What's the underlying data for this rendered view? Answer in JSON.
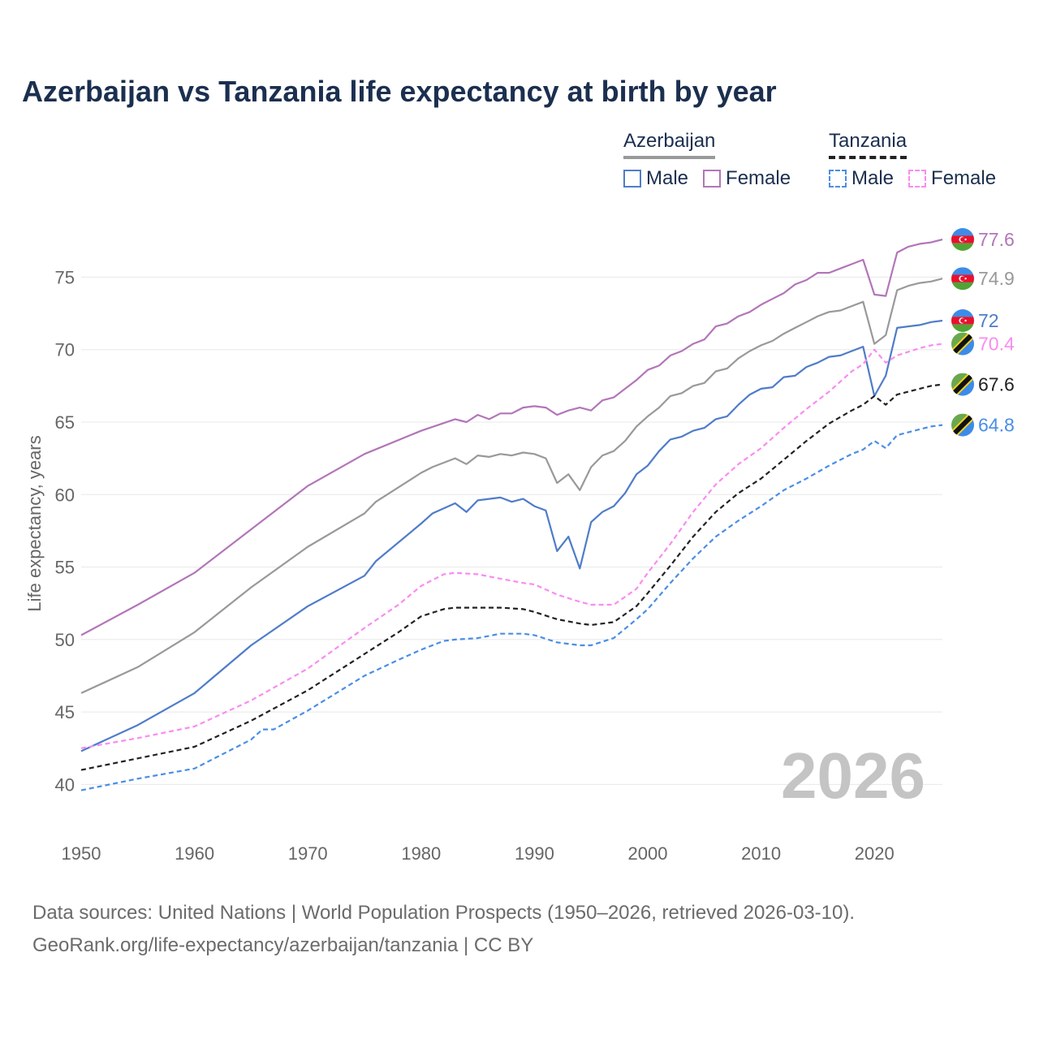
{
  "chart_data": {
    "type": "line",
    "title": "Azerbaijan vs Tanzania life expectancy at birth by year",
    "ylabel": "Life expectancy, years",
    "xlabel": "",
    "xlim": [
      1950,
      2026
    ],
    "ylim": [
      37,
      79
    ],
    "x_ticks": [
      1950,
      1960,
      1970,
      1980,
      1990,
      2000,
      2010,
      2020
    ],
    "y_ticks": [
      40,
      45,
      50,
      55,
      60,
      65,
      70,
      75
    ],
    "year_watermark": "2026",
    "legend": {
      "azerbaijan_label": "Azerbaijan",
      "tanzania_label": "Tanzania",
      "male_label": "Male",
      "female_label": "Female"
    },
    "series": [
      {
        "key": "az_female",
        "name": "Azerbaijan Female",
        "color": "#b276b8",
        "dashed": false,
        "end_label": "77.6",
        "flag": "azerbaijan",
        "points": [
          [
            1950,
            50.3
          ],
          [
            1955,
            52.4
          ],
          [
            1960,
            54.6
          ],
          [
            1965,
            57.6
          ],
          [
            1970,
            60.6
          ],
          [
            1975,
            62.8
          ],
          [
            1980,
            64.4
          ],
          [
            1983,
            65.2
          ],
          [
            1984,
            65.0
          ],
          [
            1985,
            65.5
          ],
          [
            1986,
            65.2
          ],
          [
            1987,
            65.6
          ],
          [
            1988,
            65.6
          ],
          [
            1989,
            66.0
          ],
          [
            1990,
            66.1
          ],
          [
            1991,
            66.0
          ],
          [
            1992,
            65.5
          ],
          [
            1993,
            65.8
          ],
          [
            1994,
            66.0
          ],
          [
            1995,
            65.8
          ],
          [
            1996,
            66.5
          ],
          [
            1997,
            66.7
          ],
          [
            1998,
            67.3
          ],
          [
            1999,
            67.9
          ],
          [
            2000,
            68.6
          ],
          [
            2001,
            68.9
          ],
          [
            2002,
            69.6
          ],
          [
            2003,
            69.9
          ],
          [
            2004,
            70.4
          ],
          [
            2005,
            70.7
          ],
          [
            2006,
            71.6
          ],
          [
            2007,
            71.8
          ],
          [
            2008,
            72.3
          ],
          [
            2009,
            72.6
          ],
          [
            2010,
            73.1
          ],
          [
            2011,
            73.5
          ],
          [
            2012,
            73.9
          ],
          [
            2013,
            74.5
          ],
          [
            2014,
            74.8
          ],
          [
            2015,
            75.3
          ],
          [
            2016,
            75.3
          ],
          [
            2017,
            75.6
          ],
          [
            2018,
            75.9
          ],
          [
            2019,
            76.2
          ],
          [
            2020,
            73.8
          ],
          [
            2021,
            73.7
          ],
          [
            2022,
            76.7
          ],
          [
            2023,
            77.1
          ],
          [
            2024,
            77.3
          ],
          [
            2025,
            77.4
          ],
          [
            2026,
            77.6
          ]
        ]
      },
      {
        "key": "az_total",
        "name": "Azerbaijan",
        "color": "#999999",
        "dashed": false,
        "end_label": "74.9",
        "flag": "azerbaijan",
        "points": [
          [
            1950,
            46.3
          ],
          [
            1955,
            48.1
          ],
          [
            1960,
            50.5
          ],
          [
            1965,
            53.6
          ],
          [
            1970,
            56.4
          ],
          [
            1975,
            58.7
          ],
          [
            1976,
            59.5
          ],
          [
            1980,
            61.5
          ],
          [
            1981,
            61.9
          ],
          [
            1983,
            62.5
          ],
          [
            1984,
            62.1
          ],
          [
            1985,
            62.7
          ],
          [
            1986,
            62.6
          ],
          [
            1987,
            62.8
          ],
          [
            1988,
            62.7
          ],
          [
            1989,
            62.9
          ],
          [
            1990,
            62.8
          ],
          [
            1991,
            62.5
          ],
          [
            1992,
            60.8
          ],
          [
            1993,
            61.4
          ],
          [
            1994,
            60.3
          ],
          [
            1995,
            61.9
          ],
          [
            1996,
            62.7
          ],
          [
            1997,
            63.0
          ],
          [
            1998,
            63.7
          ],
          [
            1999,
            64.7
          ],
          [
            2000,
            65.4
          ],
          [
            2001,
            66.0
          ],
          [
            2002,
            66.8
          ],
          [
            2003,
            67.0
          ],
          [
            2004,
            67.5
          ],
          [
            2005,
            67.7
          ],
          [
            2006,
            68.5
          ],
          [
            2007,
            68.7
          ],
          [
            2008,
            69.4
          ],
          [
            2009,
            69.9
          ],
          [
            2010,
            70.3
          ],
          [
            2011,
            70.6
          ],
          [
            2012,
            71.1
          ],
          [
            2013,
            71.5
          ],
          [
            2014,
            71.9
          ],
          [
            2015,
            72.3
          ],
          [
            2016,
            72.6
          ],
          [
            2017,
            72.7
          ],
          [
            2018,
            73.0
          ],
          [
            2019,
            73.3
          ],
          [
            2020,
            70.4
          ],
          [
            2021,
            71.0
          ],
          [
            2022,
            74.1
          ],
          [
            2023,
            74.4
          ],
          [
            2024,
            74.6
          ],
          [
            2025,
            74.7
          ],
          [
            2026,
            74.9
          ]
        ]
      },
      {
        "key": "az_male",
        "name": "Azerbaijan Male",
        "color": "#4f7cc9",
        "dashed": false,
        "end_label": "72",
        "flag": "azerbaijan",
        "points": [
          [
            1950,
            42.3
          ],
          [
            1955,
            44.1
          ],
          [
            1960,
            46.3
          ],
          [
            1965,
            49.6
          ],
          [
            1970,
            52.3
          ],
          [
            1975,
            54.4
          ],
          [
            1976,
            55.4
          ],
          [
            1980,
            58.0
          ],
          [
            1981,
            58.7
          ],
          [
            1983,
            59.4
          ],
          [
            1984,
            58.8
          ],
          [
            1985,
            59.6
          ],
          [
            1986,
            59.7
          ],
          [
            1987,
            59.8
          ],
          [
            1988,
            59.5
          ],
          [
            1989,
            59.7
          ],
          [
            1990,
            59.2
          ],
          [
            1991,
            58.9
          ],
          [
            1992,
            56.1
          ],
          [
            1993,
            57.1
          ],
          [
            1994,
            54.9
          ],
          [
            1995,
            58.1
          ],
          [
            1996,
            58.8
          ],
          [
            1997,
            59.2
          ],
          [
            1998,
            60.1
          ],
          [
            1999,
            61.4
          ],
          [
            2000,
            62.0
          ],
          [
            2001,
            63.0
          ],
          [
            2002,
            63.8
          ],
          [
            2003,
            64.0
          ],
          [
            2004,
            64.4
          ],
          [
            2005,
            64.6
          ],
          [
            2006,
            65.2
          ],
          [
            2007,
            65.4
          ],
          [
            2008,
            66.2
          ],
          [
            2009,
            66.9
          ],
          [
            2010,
            67.3
          ],
          [
            2011,
            67.4
          ],
          [
            2012,
            68.1
          ],
          [
            2013,
            68.2
          ],
          [
            2014,
            68.8
          ],
          [
            2015,
            69.1
          ],
          [
            2016,
            69.5
          ],
          [
            2017,
            69.6
          ],
          [
            2018,
            69.9
          ],
          [
            2019,
            70.2
          ],
          [
            2020,
            66.8
          ],
          [
            2021,
            68.2
          ],
          [
            2022,
            71.5
          ],
          [
            2023,
            71.6
          ],
          [
            2024,
            71.7
          ],
          [
            2025,
            71.9
          ],
          [
            2026,
            72.0
          ]
        ]
      },
      {
        "key": "tz_female",
        "name": "Tanzania Female",
        "color": "#f98cf0",
        "dashed": true,
        "end_label": "70.4",
        "flag": "tanzania",
        "points": [
          [
            1950,
            42.5
          ],
          [
            1955,
            43.2
          ],
          [
            1960,
            44.0
          ],
          [
            1965,
            45.8
          ],
          [
            1970,
            48.0
          ],
          [
            1975,
            50.8
          ],
          [
            1978,
            52.4
          ],
          [
            1980,
            53.7
          ],
          [
            1982,
            54.5
          ],
          [
            1983,
            54.6
          ],
          [
            1985,
            54.5
          ],
          [
            1987,
            54.2
          ],
          [
            1989,
            53.9
          ],
          [
            1990,
            53.8
          ],
          [
            1992,
            53.1
          ],
          [
            1994,
            52.6
          ],
          [
            1995,
            52.4
          ],
          [
            1997,
            52.4
          ],
          [
            1999,
            53.5
          ],
          [
            2000,
            54.6
          ],
          [
            2002,
            56.6
          ],
          [
            2004,
            58.8
          ],
          [
            2006,
            60.7
          ],
          [
            2008,
            62.1
          ],
          [
            2010,
            63.2
          ],
          [
            2012,
            64.6
          ],
          [
            2014,
            65.9
          ],
          [
            2016,
            67.1
          ],
          [
            2018,
            68.5
          ],
          [
            2019,
            69.0
          ],
          [
            2020,
            70.0
          ],
          [
            2021,
            69.1
          ],
          [
            2022,
            69.6
          ],
          [
            2024,
            70.1
          ],
          [
            2025,
            70.3
          ],
          [
            2026,
            70.4
          ]
        ]
      },
      {
        "key": "tz_total",
        "name": "Tanzania",
        "color": "#222222",
        "dashed": true,
        "end_label": "67.6",
        "flag": "tanzania",
        "points": [
          [
            1950,
            41.0
          ],
          [
            1955,
            41.8
          ],
          [
            1960,
            42.6
          ],
          [
            1965,
            44.4
          ],
          [
            1970,
            46.5
          ],
          [
            1975,
            49.0
          ],
          [
            1978,
            50.5
          ],
          [
            1980,
            51.6
          ],
          [
            1982,
            52.1
          ],
          [
            1983,
            52.2
          ],
          [
            1985,
            52.2
          ],
          [
            1987,
            52.2
          ],
          [
            1989,
            52.1
          ],
          [
            1990,
            51.9
          ],
          [
            1992,
            51.4
          ],
          [
            1994,
            51.1
          ],
          [
            1995,
            51.0
          ],
          [
            1997,
            51.2
          ],
          [
            1999,
            52.3
          ],
          [
            2000,
            53.2
          ],
          [
            2002,
            55.1
          ],
          [
            2004,
            57.1
          ],
          [
            2006,
            58.8
          ],
          [
            2008,
            60.1
          ],
          [
            2010,
            61.1
          ],
          [
            2012,
            62.4
          ],
          [
            2014,
            63.7
          ],
          [
            2016,
            64.9
          ],
          [
            2018,
            65.8
          ],
          [
            2019,
            66.2
          ],
          [
            2020,
            66.8
          ],
          [
            2021,
            66.2
          ],
          [
            2022,
            66.9
          ],
          [
            2024,
            67.3
          ],
          [
            2025,
            67.5
          ],
          [
            2026,
            67.6
          ]
        ]
      },
      {
        "key": "tz_male",
        "name": "Tanzania Male",
        "color": "#4a8ee6",
        "dashed": true,
        "end_label": "64.8",
        "flag": "tanzania",
        "points": [
          [
            1950,
            39.6
          ],
          [
            1955,
            40.4
          ],
          [
            1960,
            41.1
          ],
          [
            1965,
            43.1
          ],
          [
            1966,
            43.8
          ],
          [
            1967,
            43.8
          ],
          [
            1970,
            45.1
          ],
          [
            1975,
            47.5
          ],
          [
            1978,
            48.6
          ],
          [
            1980,
            49.3
          ],
          [
            1982,
            49.9
          ],
          [
            1983,
            50.0
          ],
          [
            1985,
            50.1
          ],
          [
            1987,
            50.4
          ],
          [
            1989,
            50.4
          ],
          [
            1990,
            50.3
          ],
          [
            1992,
            49.8
          ],
          [
            1994,
            49.6
          ],
          [
            1995,
            49.6
          ],
          [
            1997,
            50.1
          ],
          [
            1999,
            51.4
          ],
          [
            2000,
            52.1
          ],
          [
            2002,
            53.9
          ],
          [
            2004,
            55.6
          ],
          [
            2006,
            57.1
          ],
          [
            2008,
            58.2
          ],
          [
            2010,
            59.2
          ],
          [
            2012,
            60.3
          ],
          [
            2014,
            61.1
          ],
          [
            2016,
            62.0
          ],
          [
            2018,
            62.8
          ],
          [
            2019,
            63.1
          ],
          [
            2020,
            63.7
          ],
          [
            2021,
            63.2
          ],
          [
            2022,
            64.1
          ],
          [
            2024,
            64.5
          ],
          [
            2025,
            64.7
          ],
          [
            2026,
            64.8
          ]
        ]
      }
    ]
  },
  "colors": {
    "title": "#1b2f4f",
    "grid": "#e8e8e8",
    "axis_text": "#666666",
    "az_blue": "#3d8be8",
    "az_red": "#e8112d",
    "az_green": "#50a436",
    "tz_green": "#6aa84f",
    "tz_blue": "#3d8be8",
    "tz_black": "#111111",
    "tz_yellow": "#f2d21c"
  },
  "sources": {
    "line1": "Data sources: United Nations | World Population Prospects (1950–2026, retrieved 2026-03-10).",
    "line2": "GeoRank.org/life-expectancy/azerbaijan/tanzania | CC BY"
  }
}
